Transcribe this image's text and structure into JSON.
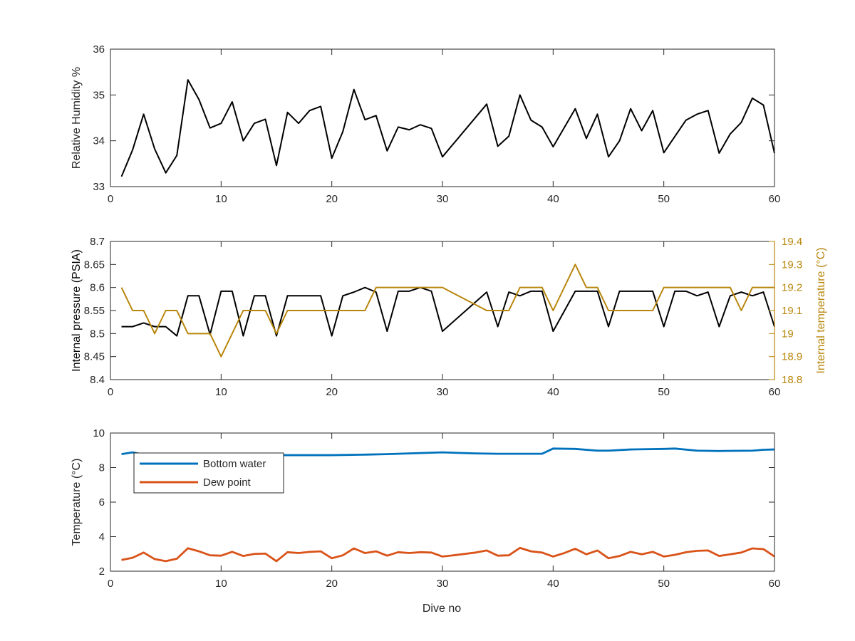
{
  "figure": {
    "xlabel": "Dive no"
  },
  "chart_data": [
    {
      "type": "line",
      "xlim": [
        0,
        60
      ],
      "ylim": [
        33,
        36
      ],
      "xticks": [
        0,
        10,
        20,
        30,
        40,
        50,
        60
      ],
      "yticks": [
        33,
        34,
        35,
        36
      ],
      "ylabel": "Relative Humidity %",
      "xlabel": "",
      "grid": false,
      "series": [
        {
          "color": "#000000",
          "axis": "left",
          "x": [
            1,
            2,
            3,
            4,
            5,
            6,
            7,
            8,
            9,
            10,
            11,
            12,
            13,
            14,
            15,
            16,
            17,
            18,
            19,
            20,
            21,
            22,
            23,
            24,
            25,
            26,
            27,
            28,
            29,
            30,
            34,
            35,
            36,
            37,
            38,
            39,
            40,
            42,
            43,
            44,
            45,
            46,
            47,
            48,
            49,
            50,
            52,
            53,
            54,
            55,
            56,
            57,
            58,
            59,
            60
          ],
          "y": [
            33.22,
            33.8,
            34.58,
            33.82,
            33.3,
            33.68,
            35.33,
            34.9,
            34.28,
            34.38,
            34.85,
            34.0,
            34.38,
            34.47,
            33.46,
            34.62,
            34.38,
            34.66,
            34.75,
            33.62,
            34.2,
            35.12,
            34.46,
            34.55,
            33.78,
            34.3,
            34.24,
            34.35,
            34.27,
            33.65,
            34.8,
            33.88,
            34.1,
            35.0,
            34.45,
            34.3,
            33.87,
            34.7,
            34.05,
            34.58,
            33.65,
            34.0,
            34.7,
            34.22,
            34.66,
            33.74,
            34.45,
            34.58,
            34.66,
            33.73,
            34.15,
            34.4,
            34.93,
            34.78,
            33.73
          ]
        }
      ]
    },
    {
      "type": "line",
      "xlim": [
        0,
        60
      ],
      "ylim": [
        8.4,
        8.7
      ],
      "ylim_right": [
        18.8,
        19.4
      ],
      "xticks": [
        0,
        10,
        20,
        30,
        40,
        50,
        60
      ],
      "yticks": [
        8.4,
        8.45,
        8.5,
        8.55,
        8.6,
        8.65,
        8.7
      ],
      "yticks_right": [
        18.8,
        18.9,
        19,
        19.1,
        19.2,
        19.3,
        19.4
      ],
      "ylabel": "Internal pressure (PSIA)",
      "ylabel_right": "Internal temperature (°C)",
      "right_color": "#B8860B",
      "grid": false,
      "series": [
        {
          "color": "#000000",
          "axis": "left",
          "x": [
            1,
            2,
            3,
            4,
            5,
            6,
            7,
            8,
            9,
            10,
            11,
            12,
            13,
            14,
            15,
            16,
            17,
            18,
            19,
            20,
            21,
            22,
            23,
            24,
            25,
            26,
            27,
            28,
            29,
            30,
            34,
            35,
            36,
            37,
            38,
            39,
            40,
            42,
            43,
            44,
            45,
            46,
            47,
            48,
            49,
            50,
            51,
            52,
            53,
            54,
            55,
            56,
            57,
            58,
            59,
            60
          ],
          "y": [
            8.515,
            8.515,
            8.523,
            8.515,
            8.515,
            8.495,
            8.582,
            8.582,
            8.498,
            8.592,
            8.592,
            8.495,
            8.582,
            8.582,
            8.495,
            8.582,
            8.582,
            8.582,
            8.582,
            8.495,
            8.582,
            8.59,
            8.6,
            8.59,
            8.505,
            8.592,
            8.592,
            8.6,
            8.592,
            8.505,
            8.59,
            8.515,
            8.59,
            8.582,
            8.592,
            8.592,
            8.505,
            8.592,
            8.592,
            8.592,
            8.515,
            8.592,
            8.592,
            8.592,
            8.592,
            8.515,
            8.592,
            8.592,
            8.582,
            8.59,
            8.515,
            8.582,
            8.59,
            8.582,
            8.59,
            8.515
          ]
        },
        {
          "color": "#B8860B",
          "axis": "right",
          "x": [
            1,
            2,
            3,
            4,
            5,
            6,
            7,
            8,
            9,
            10,
            11,
            12,
            13,
            14,
            15,
            16,
            17,
            18,
            19,
            20,
            21,
            22,
            23,
            24,
            25,
            26,
            27,
            28,
            29,
            30,
            34,
            35,
            36,
            37,
            38,
            39,
            40,
            42,
            43,
            44,
            45,
            46,
            47,
            48,
            49,
            50,
            51,
            52,
            53,
            54,
            55,
            56,
            57,
            58,
            59,
            60
          ],
          "y": [
            19.2,
            19.1,
            19.1,
            19.0,
            19.1,
            19.1,
            19.0,
            19.0,
            19.0,
            18.9,
            19.0,
            19.1,
            19.1,
            19.1,
            19.0,
            19.1,
            19.1,
            19.1,
            19.1,
            19.1,
            19.1,
            19.1,
            19.1,
            19.2,
            19.2,
            19.2,
            19.2,
            19.2,
            19.2,
            19.2,
            19.1,
            19.1,
            19.1,
            19.2,
            19.2,
            19.2,
            19.1,
            19.3,
            19.2,
            19.2,
            19.1,
            19.1,
            19.1,
            19.1,
            19.1,
            19.2,
            19.2,
            19.2,
            19.2,
            19.2,
            19.2,
            19.2,
            19.1,
            19.2,
            19.2,
            19.2
          ]
        }
      ]
    },
    {
      "type": "line",
      "xlim": [
        0,
        60
      ],
      "ylim": [
        2,
        10
      ],
      "xticks": [
        0,
        10,
        20,
        30,
        40,
        50,
        60
      ],
      "yticks": [
        2,
        4,
        6,
        8,
        10
      ],
      "ylabel": "Temperature (°C)",
      "xlabel": "Dive no",
      "grid": false,
      "legend": "top-left",
      "series": [
        {
          "name": "Bottom water",
          "color": "#0072BD",
          "axis": "left",
          "x": [
            1,
            2,
            3,
            5,
            10,
            15,
            20,
            23,
            25,
            28,
            30,
            33,
            35,
            38,
            39,
            40,
            42,
            44,
            45,
            47,
            50,
            51,
            53,
            55,
            58,
            59,
            60
          ],
          "y": [
            8.78,
            8.88,
            8.75,
            8.72,
            8.72,
            8.72,
            8.72,
            8.75,
            8.78,
            8.84,
            8.88,
            8.82,
            8.8,
            8.8,
            8.8,
            9.1,
            9.08,
            8.98,
            8.98,
            9.05,
            9.08,
            9.1,
            8.98,
            8.96,
            8.98,
            9.03,
            9.05
          ]
        },
        {
          "name": "Dew point",
          "color": "#D95319",
          "axis": "left",
          "x": [
            1,
            2,
            3,
            4,
            5,
            6,
            7,
            8,
            9,
            10,
            11,
            12,
            13,
            14,
            15,
            16,
            17,
            18,
            19,
            20,
            21,
            22,
            23,
            24,
            25,
            26,
            27,
            28,
            29,
            30,
            31,
            32,
            33,
            34,
            35,
            36,
            37,
            38,
            39,
            40,
            41,
            42,
            43,
            44,
            45,
            46,
            47,
            48,
            49,
            50,
            51,
            52,
            53,
            54,
            55,
            56,
            57,
            58,
            59,
            60
          ],
          "y": [
            2.65,
            2.78,
            3.08,
            2.7,
            2.58,
            2.72,
            3.33,
            3.15,
            2.92,
            2.9,
            3.12,
            2.88,
            3.0,
            3.02,
            2.58,
            3.1,
            3.05,
            3.12,
            3.15,
            2.75,
            2.92,
            3.32,
            3.05,
            3.15,
            2.9,
            3.1,
            3.05,
            3.1,
            3.08,
            2.85,
            2.92,
            3.0,
            3.08,
            3.2,
            2.9,
            2.92,
            3.35,
            3.15,
            3.08,
            2.85,
            3.05,
            3.3,
            2.98,
            3.2,
            2.75,
            2.88,
            3.12,
            2.98,
            3.12,
            2.85,
            2.95,
            3.1,
            3.18,
            3.2,
            2.88,
            2.98,
            3.08,
            3.32,
            3.28,
            2.85
          ]
        }
      ]
    }
  ]
}
